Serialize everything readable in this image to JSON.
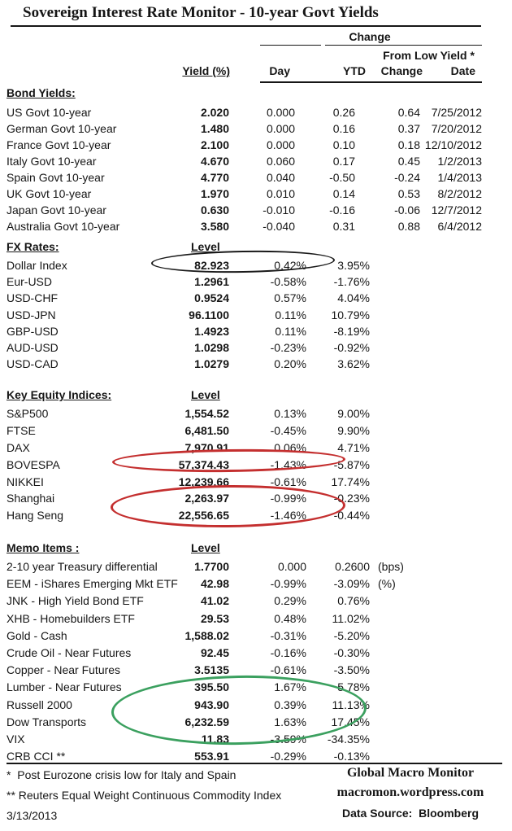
{
  "title": "Sovereign Interest Rate Monitor - 10-year Govt Yields",
  "header": {
    "change_group": "Change",
    "from_low_yield": "From Low Yield *",
    "col_yield": "Yield (%)",
    "col_day": "Day",
    "col_ytd": "YTD",
    "col_change": "Change",
    "col_date": "Date",
    "level_label": "Level"
  },
  "sections": {
    "bond": {
      "title": "Bond Yields:",
      "rows": [
        {
          "label": "US Govt 10-year",
          "level": "2.020",
          "day": "0.000",
          "ytd": "0.26",
          "change": "0.64",
          "date": "7/25/2012"
        },
        {
          "label": "German Govt 10-year",
          "level": "1.480",
          "day": "0.000",
          "ytd": "0.16",
          "change": "0.37",
          "date": "7/20/2012"
        },
        {
          "label": "France Govt 10-year",
          "level": "2.100",
          "day": "0.000",
          "ytd": "0.10",
          "change": "0.18",
          "date": "12/10/2012"
        },
        {
          "label": "Italy Govt 10-year",
          "level": "4.670",
          "day": "0.060",
          "ytd": "0.17",
          "change": "0.45",
          "date": "1/2/2013"
        },
        {
          "label": "Spain Govt 10-year",
          "level": "4.770",
          "day": "0.040",
          "ytd": "-0.50",
          "change": "-0.24",
          "date": "1/4/2013"
        },
        {
          "label": "UK Govt 10-year",
          "level": "1.970",
          "day": "0.010",
          "ytd": "0.14",
          "change": "0.53",
          "date": "8/2/2012"
        },
        {
          "label": "Japan Govt 10-year",
          "level": "0.630",
          "day": "-0.010",
          "ytd": "-0.16",
          "change": "-0.06",
          "date": "12/7/2012"
        },
        {
          "label": "Australia Govt 10-year",
          "level": "3.580",
          "day": "-0.040",
          "ytd": "0.31",
          "change": "0.88",
          "date": "6/4/2012"
        }
      ]
    },
    "fx": {
      "title": "FX Rates:",
      "rows": [
        {
          "label": "Dollar Index",
          "level": "82.923",
          "day": "0.42%",
          "ytd": "3.95%"
        },
        {
          "label": "Eur-USD",
          "level": "1.2961",
          "day": "-0.58%",
          "ytd": "-1.76%"
        },
        {
          "label": "USD-CHF",
          "level": "0.9524",
          "day": "0.57%",
          "ytd": "4.04%"
        },
        {
          "label": "USD-JPN",
          "level": "96.1100",
          "day": "0.11%",
          "ytd": "10.79%"
        },
        {
          "label": "GBP-USD",
          "level": "1.4923",
          "day": "0.11%",
          "ytd": "-8.19%"
        },
        {
          "label": "AUD-USD",
          "level": "1.0298",
          "day": "-0.23%",
          "ytd": "-0.92%"
        },
        {
          "label": "USD-CAD",
          "level": "1.0279",
          "day": "0.20%",
          "ytd": "3.62%"
        }
      ]
    },
    "equity": {
      "title": "Key Equity Indices:",
      "rows": [
        {
          "label": "S&P500",
          "level": "1,554.52",
          "day": "0.13%",
          "ytd": "9.00%"
        },
        {
          "label": "FTSE",
          "level": "6,481.50",
          "day": "-0.45%",
          "ytd": "9.90%"
        },
        {
          "label": "DAX",
          "level": "7,970.91",
          "day": "0.06%",
          "ytd": "4.71%"
        },
        {
          "label": "BOVESPA",
          "level": "57,374.43",
          "day": "-1.43%",
          "ytd": "-5.87%"
        },
        {
          "label": "NIKKEI",
          "level": "12,239.66",
          "day": "-0.61%",
          "ytd": "17.74%"
        },
        {
          "label": "Shanghai",
          "level": "2,263.97",
          "day": "-0.99%",
          "ytd": "-0.23%"
        },
        {
          "label": "Hang Seng",
          "level": "22,556.65",
          "day": "-1.46%",
          "ytd": "-0.44%"
        }
      ]
    },
    "memo": {
      "title": "Memo Items :",
      "rows": [
        {
          "label": "2-10 year Treasury differential",
          "level": "1.7700",
          "day": "0.000",
          "ytd": "0.2600",
          "note": "(bps)"
        },
        {
          "label": "EEM - iShares Emerging Mkt ETF",
          "level": "42.98",
          "day": "-0.99%",
          "ytd": "-3.09%",
          "note": "(%)"
        },
        {
          "label": "JNK - High Yield Bond ETF",
          "level": "41.02",
          "day": "0.29%",
          "ytd": "0.76%"
        },
        {
          "label": "XHB - Homebuilders ETF",
          "level": "29.53",
          "day": "0.48%",
          "ytd": "11.02%"
        },
        {
          "label": "Gold - Cash",
          "level": "1,588.02",
          "day": "-0.31%",
          "ytd": "-5.20%"
        },
        {
          "label": "Crude Oil - Near Futures",
          "level": "92.45",
          "day": "-0.16%",
          "ytd": "-0.30%"
        },
        {
          "label": "Copper - Near Futures",
          "level": "3.5135",
          "day": "-0.61%",
          "ytd": "-3.50%"
        },
        {
          "label": "Lumber - Near Futures",
          "level": "395.50",
          "day": "1.67%",
          "ytd": "5.78%"
        },
        {
          "label": "Russell 2000",
          "level": "943.90",
          "day": "0.39%",
          "ytd": "11.13%"
        },
        {
          "label": "Dow Transports",
          "level": "6,232.59",
          "day": "1.63%",
          "ytd": "17.45%"
        },
        {
          "label": "VIX",
          "level": "11.83",
          "day": "-3.59%",
          "ytd": "-34.35%"
        },
        {
          "label": "CRB CCI **",
          "level": "553.91",
          "day": "-0.29%",
          "ytd": "-0.13%"
        }
      ]
    }
  },
  "annotations": {
    "black_ellipse_target": "Dollar Index row",
    "red_ellipse_1_target": "BOVESPA row",
    "red_ellipse_2_target": "Shanghai and Hang Seng rows",
    "green_ellipse_target": "Lumber, Russell 2000, Dow Transports rows",
    "color_black": "#1a1a1a",
    "color_red": "#c42f2f",
    "color_green": "#3ba05f"
  },
  "footer": {
    "note1": "*  Post Eurozone crisis low for Italy and Spain",
    "note2": "** Reuters Equal Weight Continuous Commodity Index",
    "date": "3/13/2013",
    "brand": "Global Macro Monitor",
    "url": "macromon.wordpress.com",
    "source": "Data Source:  Bloomberg"
  }
}
